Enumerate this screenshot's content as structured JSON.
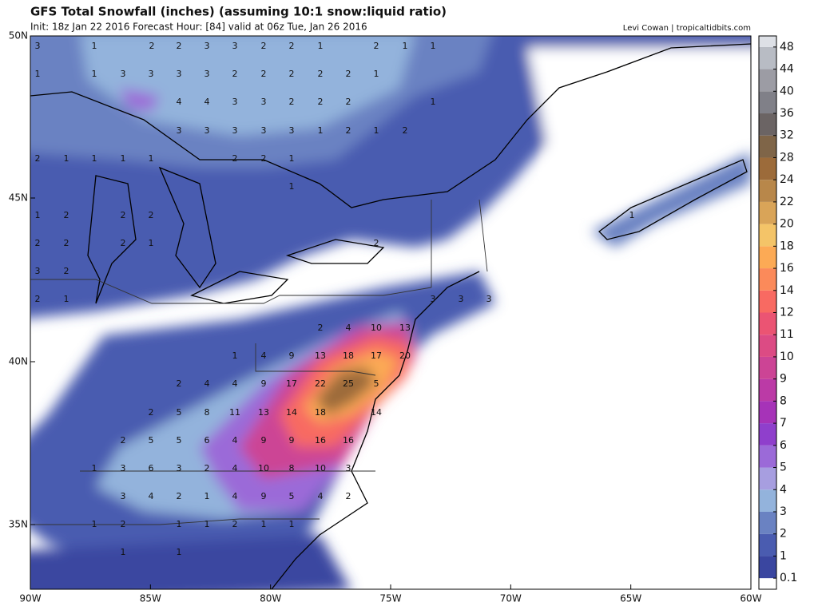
{
  "header": {
    "title": "GFS Total Snowfall (inches) (assuming 10:1 snow:liquid ratio)",
    "subtitle": "Init: 18z Jan 22 2016   Forecast Hour: [84]   valid at 06z Tue, Jan 26 2016",
    "credit": "Levi Cowan | tropicaltidbits.com"
  },
  "map": {
    "lat_labels": [
      "50N",
      "45N",
      "40N",
      "35N"
    ],
    "lon_labels": [
      "90W",
      "85W",
      "80W",
      "75W",
      "70W",
      "65W",
      "60W"
    ],
    "point_labels": [
      [
        3,
        1,
        2,
        2,
        3,
        3,
        2,
        2,
        1,
        2,
        1,
        1
      ],
      [
        1,
        1,
        3,
        3,
        3,
        3,
        2,
        2,
        2,
        2,
        2,
        1
      ],
      [
        4,
        4,
        3,
        3,
        2,
        2,
        2,
        1
      ],
      [
        3,
        3,
        3,
        3,
        3,
        1,
        2,
        1,
        2
      ],
      [
        2,
        1,
        1,
        1,
        1,
        2,
        2,
        1
      ],
      [
        1
      ],
      [
        1,
        2,
        2,
        2,
        1
      ],
      [
        2,
        2,
        2,
        1,
        2
      ],
      [
        3,
        2
      ],
      [
        2,
        1,
        3,
        3,
        3
      ],
      [
        2,
        4,
        10,
        13
      ],
      [
        1,
        4,
        9,
        13,
        18,
        17,
        20
      ],
      [
        2,
        4,
        4,
        9,
        17,
        22,
        25,
        5
      ],
      [
        2,
        5,
        8,
        11,
        13,
        14,
        18,
        14
      ],
      [
        2,
        5,
        5,
        6,
        4,
        9,
        9,
        16,
        16
      ],
      [
        1,
        3,
        6,
        3,
        2,
        4,
        10,
        8,
        10,
        3
      ],
      [
        3,
        4,
        2,
        1,
        4,
        9,
        5,
        4,
        2
      ],
      [
        1,
        2,
        1,
        1,
        2,
        1,
        1
      ],
      [
        1,
        1
      ]
    ]
  },
  "colorbar": {
    "levels": [
      0.1,
      1,
      2,
      3,
      4,
      5,
      6,
      7,
      8,
      9,
      10,
      11,
      12,
      14,
      16,
      18,
      20,
      22,
      24,
      28,
      32,
      36,
      40,
      44,
      48
    ],
    "colors": [
      "#3a46a0",
      "#4a5cb0",
      "#6a82c2",
      "#93b3dc",
      "#a79ee0",
      "#9b6ad8",
      "#8f3fcc",
      "#a633b8",
      "#bb3aa6",
      "#cc4495",
      "#dc4b84",
      "#eb5473",
      "#f86a62",
      "#fb8a5a",
      "#fcaa55",
      "#f4c468",
      "#d9a458",
      "#b8874a",
      "#9c6b3a",
      "#7f6548",
      "#6b6464",
      "#808088",
      "#9c9ca4",
      "#b8bcc4",
      "#dde0e6"
    ]
  }
}
